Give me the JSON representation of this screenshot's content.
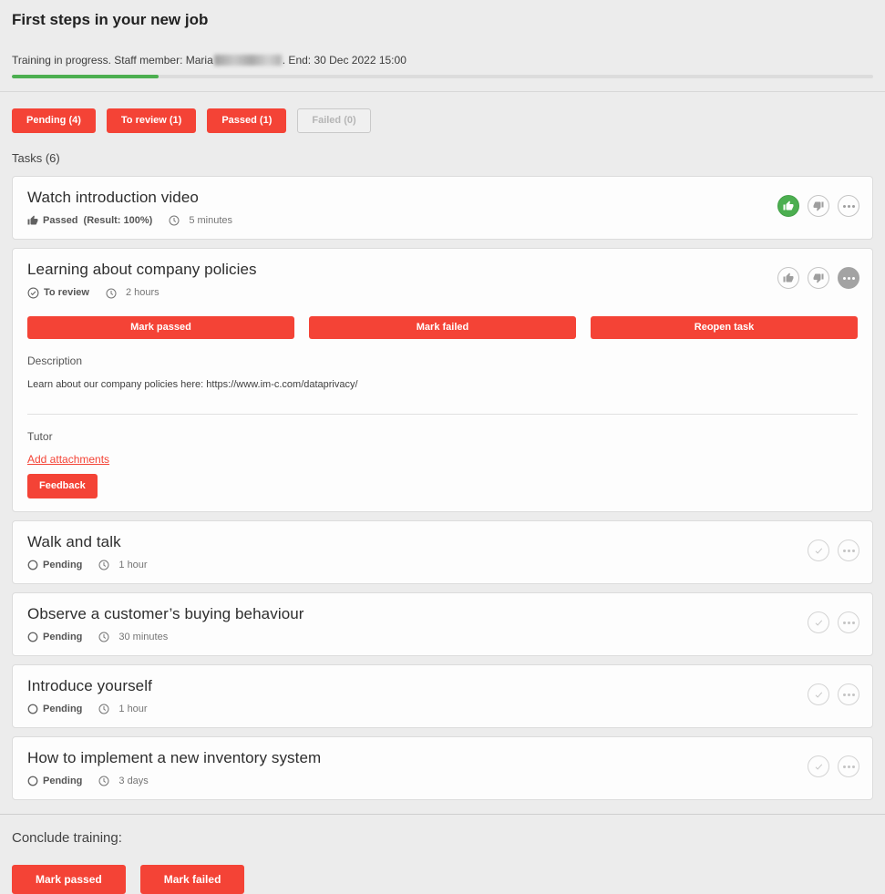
{
  "colors": {
    "accent_red": "#f44336",
    "accent_green": "#4caf50",
    "page_bg": "#ececec"
  },
  "header": {
    "title": "First steps in your new job",
    "status_prefix": "Training in progress. Staff member: Maria",
    "status_suffix": ". End: 30 Dec 2022 15:00",
    "progress_percent": 17
  },
  "filters": [
    {
      "label": "Pending (4)",
      "state": "enabled"
    },
    {
      "label": "To review (1)",
      "state": "enabled"
    },
    {
      "label": "Passed (1)",
      "state": "enabled"
    },
    {
      "label": "Failed (0)",
      "state": "disabled"
    }
  ],
  "tasks_label": "Tasks (6)",
  "tasks": [
    {
      "title": "Watch introduction video",
      "status": "Passed",
      "result": "(Result: 100%)",
      "duration": "5 minutes"
    },
    {
      "title": "Learning about company policies",
      "status": "To review",
      "duration": "2 hours",
      "actions": {
        "mark_passed": "Mark passed",
        "mark_failed": "Mark failed",
        "reopen": "Reopen task"
      },
      "description_label": "Description",
      "description": "Learn about our company policies here: https://www.im-c.com/dataprivacy/",
      "tutor_label": "Tutor",
      "add_attachments_label": "Add attachments",
      "feedback_label": "Feedback"
    },
    {
      "title": "Walk and talk",
      "status": "Pending",
      "duration": "1 hour"
    },
    {
      "title": "Observe a customer’s buying behaviour",
      "status": "Pending",
      "duration": "30 minutes"
    },
    {
      "title": "Introduce yourself",
      "status": "Pending",
      "duration": "1 hour"
    },
    {
      "title": "How to implement a new inventory system",
      "status": "Pending",
      "duration": "3 days"
    }
  ],
  "footer": {
    "title": "Conclude training:",
    "mark_passed": "Mark passed",
    "mark_failed": "Mark failed"
  }
}
